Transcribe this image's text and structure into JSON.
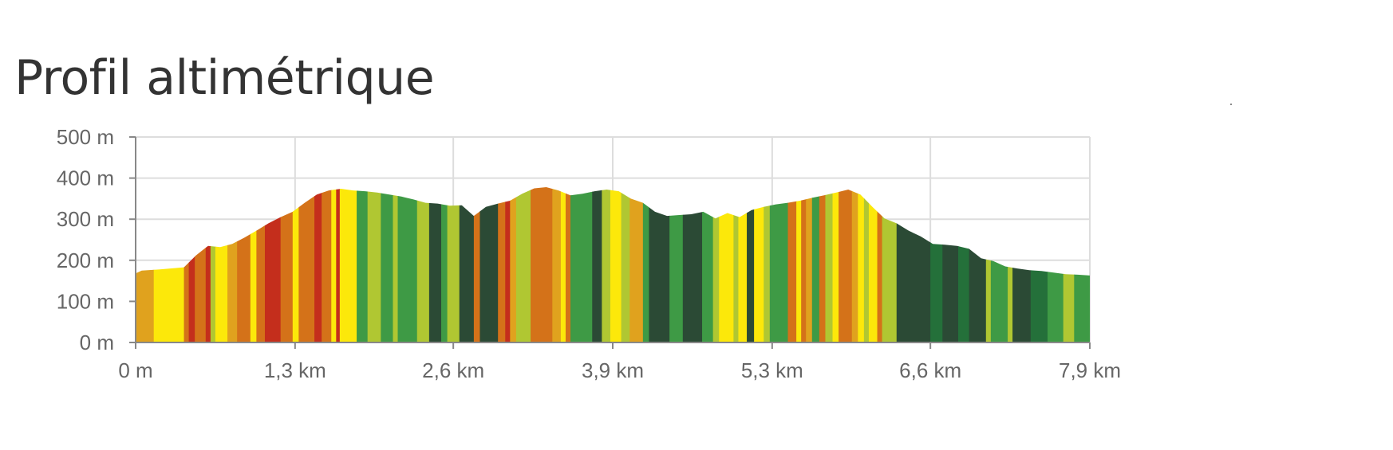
{
  "title": "Profil altimétrique",
  "chart_data": {
    "type": "area",
    "title": "Profil altimétrique",
    "xlabel": "",
    "ylabel": "",
    "xlim_km": [
      0,
      7.9
    ],
    "ylim_m": [
      0,
      500
    ],
    "grid": true,
    "legend": "none",
    "y_ticks": [
      {
        "value": 0,
        "label": "0 m"
      },
      {
        "value": 100,
        "label": "100 m"
      },
      {
        "value": 200,
        "label": "200 m"
      },
      {
        "value": 300,
        "label": "300 m"
      },
      {
        "value": 400,
        "label": "400 m"
      },
      {
        "value": 500,
        "label": "500 m"
      }
    ],
    "x_ticks": [
      {
        "value": 0,
        "label": "0 m"
      },
      {
        "value": 1.32,
        "label": "1,3 km"
      },
      {
        "value": 2.63,
        "label": "2,6 km"
      },
      {
        "value": 3.95,
        "label": "3,9 km"
      },
      {
        "value": 5.27,
        "label": "5,3 km"
      },
      {
        "value": 6.58,
        "label": "6,6 km"
      },
      {
        "value": 7.9,
        "label": "7,9 km"
      }
    ],
    "profile": {
      "distance_km": [
        0,
        0.05,
        0.2,
        0.4,
        0.5,
        0.6,
        0.7,
        0.8,
        0.9,
        1.0,
        1.1,
        1.2,
        1.3,
        1.4,
        1.5,
        1.6,
        1.7,
        1.8,
        1.9,
        2.0,
        2.1,
        2.2,
        2.3,
        2.4,
        2.5,
        2.6,
        2.7,
        2.8,
        2.9,
        3.0,
        3.1,
        3.2,
        3.3,
        3.4,
        3.5,
        3.6,
        3.7,
        3.8,
        3.9,
        4.0,
        4.1,
        4.2,
        4.3,
        4.4,
        4.5,
        4.6,
        4.7,
        4.8,
        4.9,
        5.0,
        5.1,
        5.2,
        5.3,
        5.4,
        5.5,
        5.6,
        5.7,
        5.8,
        5.9,
        6.0,
        6.1,
        6.2,
        6.3,
        6.4,
        6.5,
        6.6,
        6.7,
        6.8,
        6.9,
        7.0,
        7.1,
        7.2,
        7.3,
        7.4,
        7.5,
        7.6,
        7.7,
        7.8,
        7.9
      ],
      "elevation_m": [
        168,
        175,
        178,
        183,
        212,
        235,
        232,
        240,
        255,
        272,
        290,
        305,
        318,
        340,
        360,
        370,
        374,
        370,
        368,
        365,
        360,
        355,
        348,
        340,
        338,
        333,
        334,
        308,
        330,
        338,
        345,
        362,
        375,
        378,
        370,
        358,
        362,
        368,
        372,
        368,
        350,
        340,
        318,
        308,
        310,
        312,
        318,
        302,
        315,
        305,
        322,
        330,
        336,
        340,
        345,
        352,
        358,
        365,
        372,
        360,
        330,
        302,
        290,
        272,
        258,
        240,
        238,
        235,
        228,
        205,
        198,
        185,
        180,
        176,
        174,
        170,
        166,
        165,
        163
      ]
    },
    "slope_bands": [
      {
        "from_km": 0.0,
        "to_km": 0.15,
        "color": "#E0A21E"
      },
      {
        "from_km": 0.15,
        "to_km": 0.4,
        "color": "#FCE80A"
      },
      {
        "from_km": 0.4,
        "to_km": 0.44,
        "color": "#D47219"
      },
      {
        "from_km": 0.44,
        "to_km": 0.49,
        "color": "#C42E1C"
      },
      {
        "from_km": 0.49,
        "to_km": 0.58,
        "color": "#D47219"
      },
      {
        "from_km": 0.58,
        "to_km": 0.62,
        "color": "#C42E1C"
      },
      {
        "from_km": 0.62,
        "to_km": 0.66,
        "color": "#B0C732"
      },
      {
        "from_km": 0.66,
        "to_km": 0.76,
        "color": "#FCE80A"
      },
      {
        "from_km": 0.76,
        "to_km": 0.84,
        "color": "#E0A21E"
      },
      {
        "from_km": 0.84,
        "to_km": 0.95,
        "color": "#D47219"
      },
      {
        "from_km": 0.95,
        "to_km": 1.0,
        "color": "#FCE80A"
      },
      {
        "from_km": 1.0,
        "to_km": 1.07,
        "color": "#D47219"
      },
      {
        "from_km": 1.07,
        "to_km": 1.2,
        "color": "#C42E1C"
      },
      {
        "from_km": 1.2,
        "to_km": 1.3,
        "color": "#D47219"
      },
      {
        "from_km": 1.3,
        "to_km": 1.35,
        "color": "#FCE80A"
      },
      {
        "from_km": 1.35,
        "to_km": 1.48,
        "color": "#D47219"
      },
      {
        "from_km": 1.48,
        "to_km": 1.54,
        "color": "#C42E1C"
      },
      {
        "from_km": 1.54,
        "to_km": 1.62,
        "color": "#D47219"
      },
      {
        "from_km": 1.62,
        "to_km": 1.66,
        "color": "#FCE80A"
      },
      {
        "from_km": 1.66,
        "to_km": 1.69,
        "color": "#C42E1C"
      },
      {
        "from_km": 1.69,
        "to_km": 1.83,
        "color": "#FCE80A"
      },
      {
        "from_km": 1.83,
        "to_km": 1.92,
        "color": "#3E9A45"
      },
      {
        "from_km": 1.92,
        "to_km": 2.03,
        "color": "#B0C732"
      },
      {
        "from_km": 2.03,
        "to_km": 2.13,
        "color": "#3E9A45"
      },
      {
        "from_km": 2.13,
        "to_km": 2.17,
        "color": "#B0C732"
      },
      {
        "from_km": 2.17,
        "to_km": 2.33,
        "color": "#3E9A45"
      },
      {
        "from_km": 2.33,
        "to_km": 2.43,
        "color": "#B0C732"
      },
      {
        "from_km": 2.43,
        "to_km": 2.53,
        "color": "#2B4A35"
      },
      {
        "from_km": 2.53,
        "to_km": 2.58,
        "color": "#3E9A45"
      },
      {
        "from_km": 2.58,
        "to_km": 2.68,
        "color": "#B0C732"
      },
      {
        "from_km": 2.68,
        "to_km": 2.8,
        "color": "#2B4A35"
      },
      {
        "from_km": 2.8,
        "to_km": 2.85,
        "color": "#D47219"
      },
      {
        "from_km": 2.85,
        "to_km": 3.0,
        "color": "#2B4A35"
      },
      {
        "from_km": 3.0,
        "to_km": 3.06,
        "color": "#D47219"
      },
      {
        "from_km": 3.06,
        "to_km": 3.1,
        "color": "#C42E1C"
      },
      {
        "from_km": 3.1,
        "to_km": 3.15,
        "color": "#E0A21E"
      },
      {
        "from_km": 3.15,
        "to_km": 3.27,
        "color": "#B0C732"
      },
      {
        "from_km": 3.27,
        "to_km": 3.45,
        "color": "#D47219"
      },
      {
        "from_km": 3.45,
        "to_km": 3.52,
        "color": "#E0A21E"
      },
      {
        "from_km": 3.52,
        "to_km": 3.56,
        "color": "#FCE80A"
      },
      {
        "from_km": 3.56,
        "to_km": 3.6,
        "color": "#D47219"
      },
      {
        "from_km": 3.6,
        "to_km": 3.78,
        "color": "#3E9A45"
      },
      {
        "from_km": 3.78,
        "to_km": 3.86,
        "color": "#2B4A35"
      },
      {
        "from_km": 3.86,
        "to_km": 3.93,
        "color": "#B0C732"
      },
      {
        "from_km": 3.93,
        "to_km": 4.02,
        "color": "#FCE80A"
      },
      {
        "from_km": 4.02,
        "to_km": 4.09,
        "color": "#B0C732"
      },
      {
        "from_km": 4.09,
        "to_km": 4.2,
        "color": "#E0A21E"
      },
      {
        "from_km": 4.2,
        "to_km": 4.25,
        "color": "#3E9A45"
      },
      {
        "from_km": 4.25,
        "to_km": 4.42,
        "color": "#2B4A35"
      },
      {
        "from_km": 4.42,
        "to_km": 4.53,
        "color": "#3E9A45"
      },
      {
        "from_km": 4.53,
        "to_km": 4.69,
        "color": "#2B4A35"
      },
      {
        "from_km": 4.69,
        "to_km": 4.78,
        "color": "#3E9A45"
      },
      {
        "from_km": 4.78,
        "to_km": 4.83,
        "color": "#B0C732"
      },
      {
        "from_km": 4.83,
        "to_km": 4.95,
        "color": "#FCE80A"
      },
      {
        "from_km": 4.95,
        "to_km": 4.99,
        "color": "#B0C732"
      },
      {
        "from_km": 4.99,
        "to_km": 5.06,
        "color": "#FCE80A"
      },
      {
        "from_km": 5.06,
        "to_km": 5.12,
        "color": "#2B4A35"
      },
      {
        "from_km": 5.12,
        "to_km": 5.2,
        "color": "#FCE80A"
      },
      {
        "from_km": 5.2,
        "to_km": 5.25,
        "color": "#B0C732"
      },
      {
        "from_km": 5.25,
        "to_km": 5.4,
        "color": "#3E9A45"
      },
      {
        "from_km": 5.4,
        "to_km": 5.47,
        "color": "#D47219"
      },
      {
        "from_km": 5.47,
        "to_km": 5.51,
        "color": "#FCE80A"
      },
      {
        "from_km": 5.51,
        "to_km": 5.55,
        "color": "#D47219"
      },
      {
        "from_km": 5.55,
        "to_km": 5.6,
        "color": "#E0A21E"
      },
      {
        "from_km": 5.6,
        "to_km": 5.66,
        "color": "#3E9A45"
      },
      {
        "from_km": 5.66,
        "to_km": 5.71,
        "color": "#D47219"
      },
      {
        "from_km": 5.71,
        "to_km": 5.77,
        "color": "#B0C732"
      },
      {
        "from_km": 5.77,
        "to_km": 5.82,
        "color": "#FCE80A"
      },
      {
        "from_km": 5.82,
        "to_km": 5.93,
        "color": "#D47219"
      },
      {
        "from_km": 5.93,
        "to_km": 5.98,
        "color": "#E0A21E"
      },
      {
        "from_km": 5.98,
        "to_km": 6.03,
        "color": "#FCE80A"
      },
      {
        "from_km": 6.03,
        "to_km": 6.07,
        "color": "#B0C732"
      },
      {
        "from_km": 6.07,
        "to_km": 6.14,
        "color": "#FCE80A"
      },
      {
        "from_km": 6.14,
        "to_km": 6.18,
        "color": "#D47219"
      },
      {
        "from_km": 6.18,
        "to_km": 6.3,
        "color": "#B0C732"
      },
      {
        "from_km": 6.3,
        "to_km": 6.58,
        "color": "#2B4A35"
      },
      {
        "from_km": 6.58,
        "to_km": 6.68,
        "color": "#24703A"
      },
      {
        "from_km": 6.68,
        "to_km": 6.81,
        "color": "#2B4A35"
      },
      {
        "from_km": 6.81,
        "to_km": 6.9,
        "color": "#24703A"
      },
      {
        "from_km": 6.9,
        "to_km": 7.04,
        "color": "#2B4A35"
      },
      {
        "from_km": 7.04,
        "to_km": 7.08,
        "color": "#B0C732"
      },
      {
        "from_km": 7.08,
        "to_km": 7.22,
        "color": "#3E9A45"
      },
      {
        "from_km": 7.22,
        "to_km": 7.26,
        "color": "#B0C732"
      },
      {
        "from_km": 7.26,
        "to_km": 7.41,
        "color": "#2B4A35"
      },
      {
        "from_km": 7.41,
        "to_km": 7.55,
        "color": "#24703A"
      },
      {
        "from_km": 7.55,
        "to_km": 7.68,
        "color": "#3E9A45"
      },
      {
        "from_km": 7.68,
        "to_km": 7.77,
        "color": "#B0C732"
      },
      {
        "from_km": 7.77,
        "to_km": 7.9,
        "color": "#3E9A45"
      }
    ],
    "colors": {
      "grid": "#dddddd",
      "axis": "#888888",
      "tick_label": "#666666",
      "title": "#333333"
    }
  }
}
